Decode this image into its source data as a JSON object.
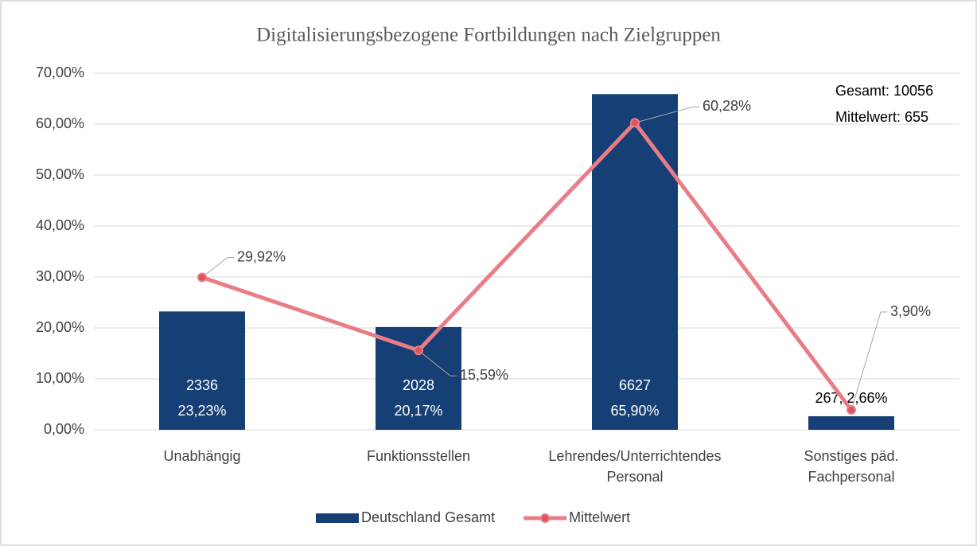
{
  "chart_data": {
    "type": "bar_line",
    "title": "Digitalisierungsbezogene Fortbildungen nach Zielgruppen",
    "categories": [
      "Unabhängig",
      "Funktionsstellen",
      "Lehrendes/Unterrichtendes\nPersonal",
      "Sonstiges päd.\nFachpersonal"
    ],
    "series": [
      {
        "name": "Deutschland Gesamt",
        "type": "bar",
        "color": "#163f75",
        "values": [
          23.23,
          20.17,
          65.9,
          2.66
        ],
        "value_labels": [
          "23,23%",
          "20,17%",
          "65,90%",
          "2,66%"
        ],
        "counts": [
          2336,
          2028,
          6627,
          267
        ],
        "label_separator": "; "
      },
      {
        "name": "Mittelwert",
        "type": "line",
        "color": "#e97d86",
        "marker_color": "#d9545f",
        "values": [
          29.92,
          15.59,
          60.28,
          3.9
        ],
        "value_labels": [
          "29,92%",
          "15,59%",
          "60,28%",
          "3,90%"
        ]
      }
    ],
    "annotations": [
      "Gesamt: 10056",
      "Mittelwert: 655"
    ],
    "ylim": [
      0,
      70
    ],
    "yticks": [
      {
        "value": 0,
        "label": "0,00%"
      },
      {
        "value": 10,
        "label": "10,00%"
      },
      {
        "value": 20,
        "label": "20,00%"
      },
      {
        "value": 30,
        "label": "30,00%"
      },
      {
        "value": 40,
        "label": "40,00%"
      },
      {
        "value": 50,
        "label": "50,00%"
      },
      {
        "value": 60,
        "label": "60,00%"
      },
      {
        "value": 70,
        "label": "70,00%"
      }
    ],
    "grid": true,
    "legend": "bottom"
  }
}
